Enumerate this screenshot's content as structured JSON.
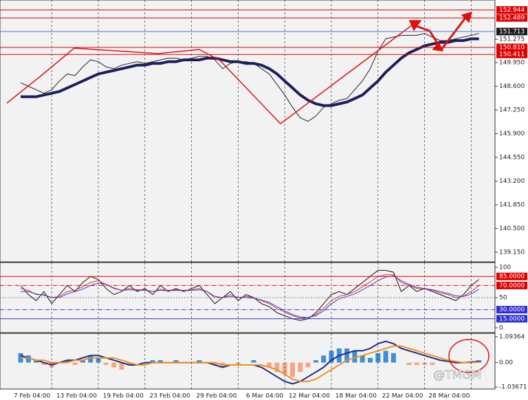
{
  "chart_data": [
    {
      "type": "line",
      "ylim": [
        138.6,
        153.51
      ],
      "yticks": [
        151.275,
        {
          "value": 149.95,
          "label": "149.950"
        },
        {
          "value": 148.6,
          "label": "148.600"
        },
        {
          "value": 147.25,
          "label": "147.250"
        },
        {
          "value": 145.9,
          "label": "145.900"
        },
        {
          "value": 144.55,
          "label": "144.550"
        },
        {
          "value": 143.2,
          "label": "143.200"
        },
        {
          "value": 141.85,
          "label": "141.850"
        },
        {
          "value": 140.5,
          "label": "140.500"
        },
        {
          "value": 139.15,
          "label": "139.150"
        }
      ],
      "levels": [
        {
          "value": 152.944,
          "color": "#e00000",
          "box_color": "#e00000"
        },
        {
          "value": 152.489,
          "color": "#e00000",
          "box_color": "#e00000"
        },
        {
          "value": 151.713,
          "color": "#5070e0",
          "box_color": "#1a1a1a"
        },
        {
          "value": {
            "value": 150.81,
            "label": "150.810"
          },
          "color": "#e00000",
          "box_color": "#e00000"
        },
        {
          "value": 150.411,
          "color": "#e00000",
          "box_color": "#e00000"
        }
      ],
      "series": [
        {
          "color": "#222222",
          "width": 1,
          "values": [
            148.8,
            148.6,
            148.4,
            148.2,
            148.4,
            148.9,
            149.3,
            149.2,
            149.7,
            150.1,
            150.0,
            149.7,
            149.6,
            149.8,
            149.9,
            150.0,
            149.9,
            150.0,
            150.1,
            150.2,
            150.2,
            150.1,
            150.2,
            150.3,
            150.3,
            150.1,
            149.6,
            149.9,
            150.0,
            150.0,
            149.9,
            149.6,
            149.3,
            148.7,
            148.1,
            147.4,
            146.8,
            146.6,
            146.9,
            147.4,
            147.6,
            147.8,
            147.9,
            148.4,
            148.9,
            149.6,
            150.6,
            151.3,
            151.4,
            151.5,
            151.5,
            151.5,
            151.6,
            151.4,
            151.2,
            151.2,
            151.3,
            151.4,
            151.5,
            151.6
          ]
        },
        {
          "color": "#1c1f5e",
          "width": 4,
          "values": [
            148.0,
            148.0,
            148.0,
            148.1,
            148.2,
            148.3,
            148.5,
            148.7,
            148.9,
            149.1,
            149.3,
            149.4,
            149.5,
            149.6,
            149.7,
            149.8,
            149.8,
            149.9,
            149.9,
            150.0,
            150.0,
            150.1,
            150.1,
            150.1,
            150.2,
            150.2,
            150.1,
            150.0,
            150.0,
            149.9,
            149.9,
            149.8,
            149.6,
            149.3,
            148.9,
            148.5,
            148.1,
            147.8,
            147.6,
            147.5,
            147.5,
            147.6,
            147.7,
            147.9,
            148.1,
            148.5,
            148.9,
            149.4,
            149.8,
            150.2,
            150.5,
            150.7,
            150.9,
            151.0,
            151.1,
            151.1,
            151.2,
            151.2,
            151.3,
            151.3
          ]
        }
      ]
    },
    {
      "type": "line",
      "ylim": [
        -8,
        108
      ],
      "yticks": [
        0,
        50,
        100
      ],
      "levels": [
        {
          "value": {
            "value": 85,
            "label": "85.0000"
          },
          "color": "#e00000",
          "box_color": "#e00000",
          "style": "solid"
        },
        {
          "value": {
            "value": 70,
            "label": "70.0000"
          },
          "color": "#e00000",
          "box_color": "#e00000",
          "style": "dashdot"
        },
        {
          "value": {
            "value": 30,
            "label": "30.0000"
          },
          "color": "#3030d0",
          "box_color": "#3030d0",
          "style": "dashdot"
        },
        {
          "value": {
            "value": 15,
            "label": "15.0000"
          },
          "color": "#3030d0",
          "box_color": "#3030d0",
          "style": "solid"
        }
      ],
      "series": [
        {
          "color": "#111111",
          "width": 1,
          "values": [
            70,
            55,
            45,
            60,
            40,
            55,
            70,
            60,
            75,
            85,
            80,
            65,
            55,
            60,
            70,
            60,
            65,
            55,
            70,
            60,
            65,
            60,
            65,
            70,
            55,
            40,
            50,
            60,
            45,
            55,
            50,
            40,
            35,
            25,
            20,
            15,
            12,
            15,
            25,
            40,
            55,
            60,
            55,
            65,
            75,
            85,
            95,
            95,
            92,
            60,
            70,
            60,
            65,
            60,
            55,
            50,
            45,
            55,
            70,
            80
          ]
        },
        {
          "color": "#e03030",
          "width": 1,
          "values": [
            65,
            62,
            55,
            55,
            50,
            52,
            60,
            62,
            68,
            75,
            78,
            72,
            65,
            62,
            65,
            63,
            63,
            60,
            64,
            62,
            63,
            62,
            63,
            65,
            60,
            50,
            50,
            55,
            50,
            52,
            50,
            45,
            40,
            32,
            26,
            20,
            16,
            17,
            22,
            32,
            45,
            52,
            55,
            60,
            68,
            76,
            85,
            88,
            88,
            75,
            70,
            65,
            64,
            62,
            58,
            55,
            50,
            52,
            60,
            70
          ]
        },
        {
          "color": "#3040d0",
          "width": 1,
          "values": [
            60,
            60,
            56,
            54,
            50,
            50,
            56,
            60,
            64,
            70,
            74,
            72,
            66,
            62,
            63,
            62,
            62,
            60,
            62,
            61,
            62,
            61,
            62,
            63,
            60,
            52,
            50,
            52,
            50,
            50,
            49,
            46,
            42,
            35,
            28,
            22,
            18,
            17,
            20,
            28,
            40,
            48,
            52,
            56,
            63,
            70,
            78,
            84,
            86,
            78,
            72,
            67,
            65,
            63,
            60,
            57,
            53,
            52,
            56,
            64
          ]
        }
      ]
    },
    {
      "type": "macd",
      "ylim": [
        -1.12,
        1.24
      ],
      "yticks": [
        1.09364,
        {
          "value": 0,
          "label": "0.00"
        },
        -1.03671
      ],
      "watermark": "@TMGM",
      "categories": [
        null,
        null,
        null,
        null,
        "7 Feb 04:00",
        null,
        null,
        null,
        null,
        null,
        "13 Feb 04:00",
        null,
        null,
        null,
        null,
        null,
        "19 Feb 04:00",
        null,
        null,
        null,
        null,
        null,
        "23 Feb 04:00",
        null,
        null,
        null,
        null,
        null,
        "29 Feb 04:00",
        null,
        null,
        null,
        null,
        null,
        "6 Mar 04:00",
        null,
        null,
        null,
        null,
        null,
        "12 Mar 04:00",
        null,
        null,
        null,
        null,
        null,
        "18 Mar 04:00",
        null,
        null,
        null,
        null,
        null,
        "22 Mar 04:00",
        null,
        null,
        null,
        null,
        null,
        "28 Mar 04:00",
        null
      ],
      "histogram": {
        "color": "#3a8fd8",
        "negative_color": "#f4a582",
        "values": [
          0.4,
          0.3,
          0.1,
          -0.1,
          -0.2,
          0.0,
          0.1,
          -0.1,
          0.1,
          0.3,
          0.2,
          -0.1,
          -0.2,
          -0.3,
          -0.1,
          0.0,
          0.0,
          0.1,
          0.1,
          0.0,
          0.1,
          0.0,
          0.0,
          0.1,
          0.0,
          -0.1,
          -0.2,
          0.0,
          -0.1,
          0.0,
          0.1,
          0.0,
          -0.2,
          -0.4,
          -0.5,
          -0.6,
          -0.4,
          -0.2,
          0.1,
          0.3,
          0.5,
          0.6,
          0.6,
          0.5,
          0.3,
          0.2,
          0.4,
          0.5,
          0.4,
          0.0,
          -0.1,
          -0.1,
          -0.1,
          -0.1,
          0.0,
          0.0,
          0.0,
          0.0,
          0.05,
          0.1
        ]
      },
      "series": [
        {
          "color": "#1c2a8a",
          "width": 2,
          "values": [
            0.3,
            0.2,
            0.1,
            0.0,
            -0.1,
            0.0,
            0.1,
            0.1,
            0.2,
            0.3,
            0.3,
            0.2,
            0.1,
            0.0,
            -0.1,
            -0.1,
            0.0,
            0.0,
            0.0,
            0.0,
            0.0,
            0.0,
            0.0,
            0.0,
            0.0,
            -0.1,
            -0.2,
            -0.1,
            -0.1,
            -0.1,
            -0.1,
            -0.2,
            -0.4,
            -0.6,
            -0.8,
            -0.9,
            -0.8,
            -0.6,
            -0.4,
            -0.2,
            0.1,
            0.3,
            0.4,
            0.5,
            0.5,
            0.6,
            0.8,
            0.9,
            0.8,
            0.6,
            0.5,
            0.4,
            0.3,
            0.2,
            0.1,
            0.05,
            0.0,
            0.0,
            0.02,
            0.05
          ]
        },
        {
          "color": "#f0901e",
          "width": 2,
          "values": [
            0.2,
            0.2,
            0.1,
            0.1,
            0.0,
            0.0,
            0.0,
            0.1,
            0.1,
            0.2,
            0.2,
            0.2,
            0.2,
            0.1,
            0.0,
            -0.1,
            -0.1,
            0.0,
            0.0,
            0.0,
            0.0,
            0.0,
            0.0,
            0.0,
            0.0,
            0.0,
            -0.1,
            -0.1,
            -0.1,
            -0.1,
            -0.1,
            -0.1,
            -0.2,
            -0.3,
            -0.5,
            -0.7,
            -0.8,
            -0.8,
            -0.7,
            -0.5,
            -0.3,
            -0.1,
            0.1,
            0.2,
            0.3,
            0.4,
            0.5,
            0.6,
            0.7,
            0.7,
            0.6,
            0.5,
            0.4,
            0.3,
            0.2,
            0.1,
            0.05,
            0.0,
            0.0,
            0.02
          ]
        }
      ]
    }
  ]
}
